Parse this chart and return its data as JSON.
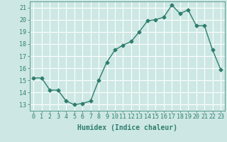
{
  "x": [
    0,
    1,
    2,
    3,
    4,
    5,
    6,
    7,
    8,
    9,
    10,
    11,
    12,
    13,
    14,
    15,
    16,
    17,
    18,
    19,
    20,
    21,
    22,
    23
  ],
  "y": [
    15.2,
    15.2,
    14.2,
    14.2,
    13.3,
    13.0,
    13.1,
    13.3,
    15.0,
    16.5,
    17.5,
    17.9,
    18.2,
    19.0,
    19.9,
    20.0,
    20.2,
    21.2,
    20.5,
    20.8,
    19.5,
    19.5,
    17.5,
    15.9
  ],
  "line_color": "#2e7d6e",
  "marker": "D",
  "marker_size": 2.5,
  "bg_color": "#cde8e4",
  "grid_color": "#ffffff",
  "xlabel": "Humidex (Indice chaleur)",
  "xlim": [
    -0.5,
    23.5
  ],
  "ylim": [
    12.5,
    21.5
  ],
  "yticks": [
    13,
    14,
    15,
    16,
    17,
    18,
    19,
    20,
    21
  ],
  "xticks": [
    0,
    1,
    2,
    3,
    4,
    5,
    6,
    7,
    8,
    9,
    10,
    11,
    12,
    13,
    14,
    15,
    16,
    17,
    18,
    19,
    20,
    21,
    22,
    23
  ],
  "tick_color": "#2e7d6e",
  "label_fontsize": 6.0,
  "axis_fontsize": 7.0,
  "line_width": 1.0
}
